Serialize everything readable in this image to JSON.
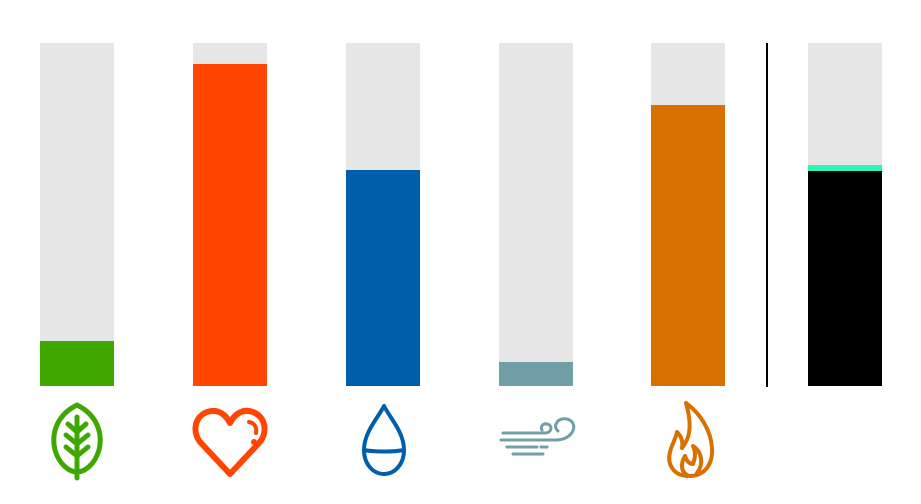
{
  "meters": [
    {
      "id": "nature",
      "level": 0.13,
      "color": "#3fa800",
      "icon": "leaf-icon"
    },
    {
      "id": "health",
      "level": 0.94,
      "color": "#ff4500",
      "icon": "heart-icon"
    },
    {
      "id": "water",
      "level": 0.63,
      "color": "#005fad",
      "icon": "water-drop-icon"
    },
    {
      "id": "air",
      "level": 0.07,
      "color": "#719ea7",
      "icon": "wind-icon"
    },
    {
      "id": "fire",
      "level": 0.82,
      "color": "#d97000",
      "icon": "flame-icon"
    }
  ],
  "total_meter": {
    "level": 0.645,
    "color": "#000000",
    "cap_color": "#2bf5b8"
  }
}
